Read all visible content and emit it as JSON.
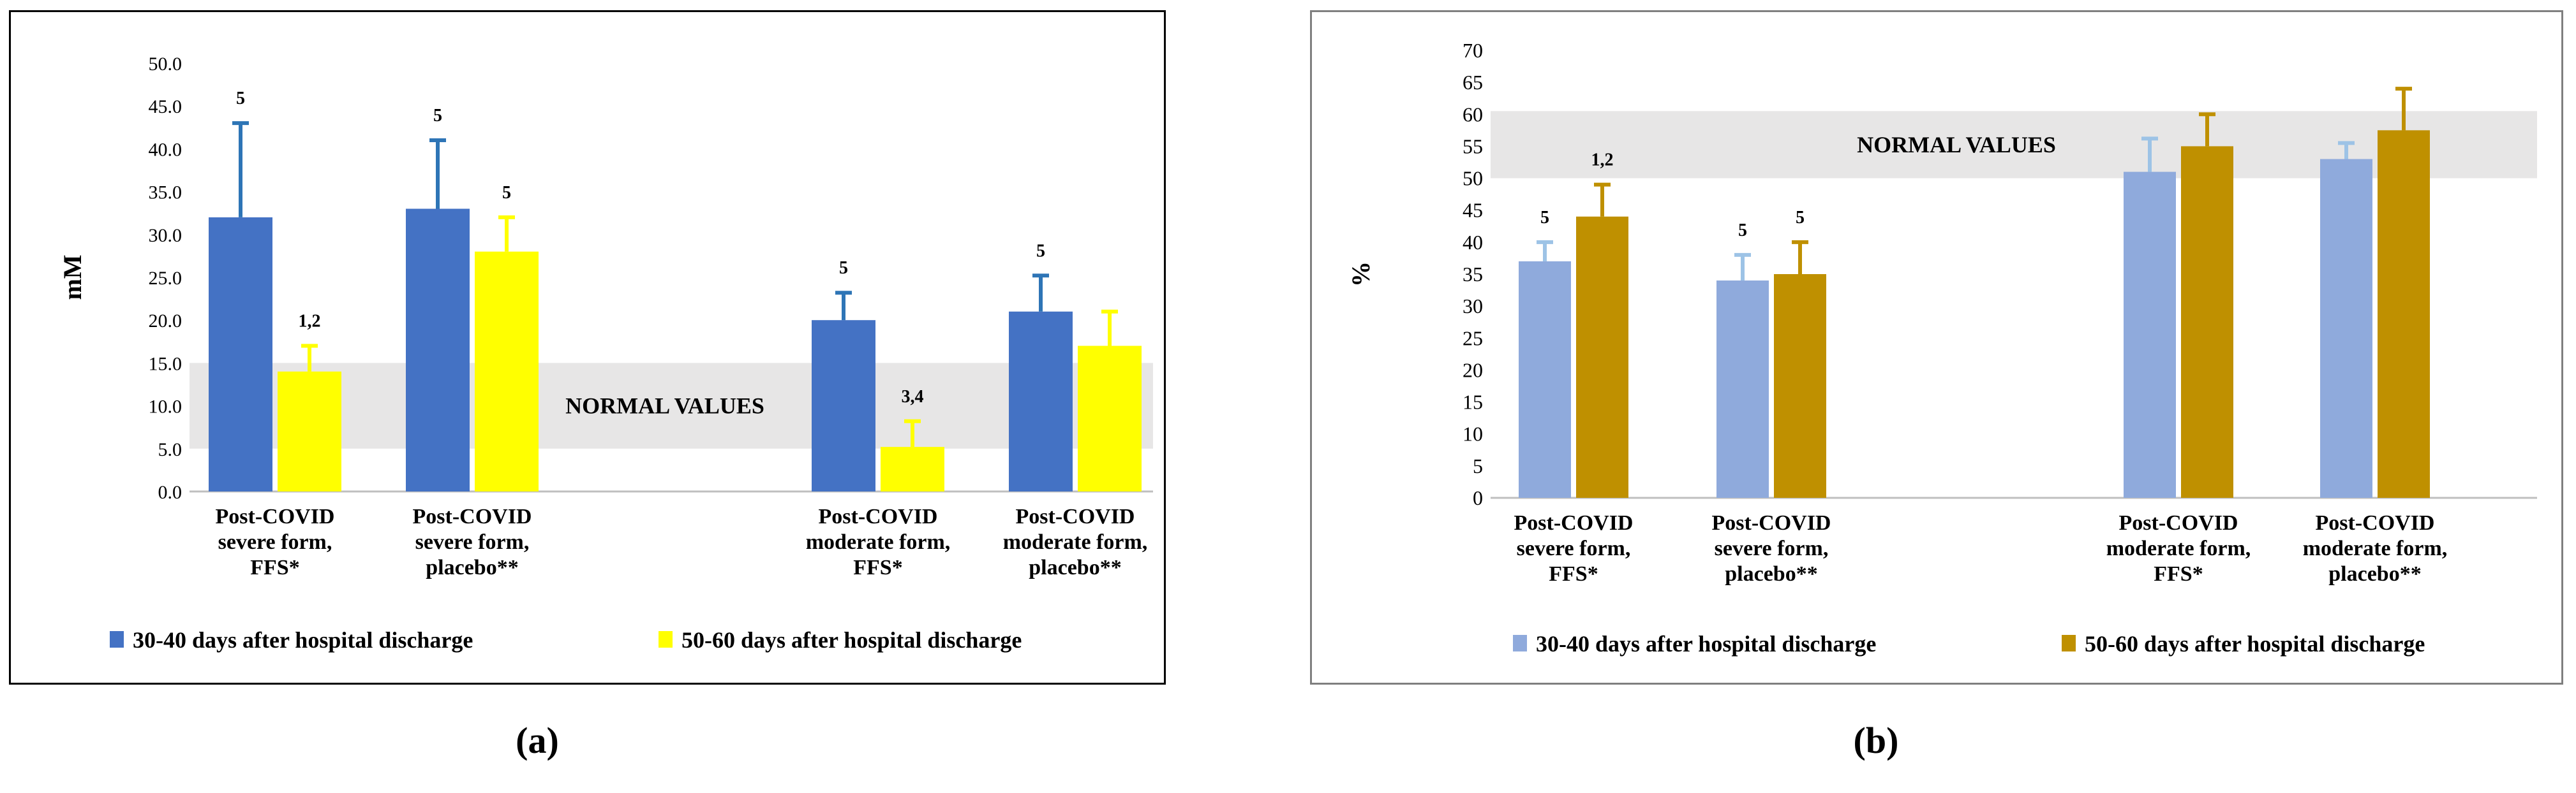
{
  "captions": {
    "a": "(a)",
    "b": "(b)"
  },
  "chart_data": [
    {
      "type": "bar",
      "panel": "a",
      "ylabel": "mM",
      "ylim": [
        0,
        50
      ],
      "yticks": [
        "0.0",
        "5.0",
        "10.0",
        "15.0",
        "20.0",
        "25.0",
        "30.0",
        "35.0",
        "40.0",
        "45.0",
        "50.0"
      ],
      "normal_band": {
        "label": "NORMAL VALUES",
        "range": [
          5,
          15
        ]
      },
      "categories": [
        [
          "Post-COVID",
          "severe form,",
          "FFS*"
        ],
        [
          "Post-COVID",
          "severe form,",
          "placebo**"
        ],
        [
          "Post-COVID",
          "moderate form,",
          "FFS*"
        ],
        [
          "Post-COVID",
          "moderate form,",
          "placebo**"
        ]
      ],
      "series": [
        {
          "name": "30-40 days after hospital discharge",
          "color": "#4472C4",
          "err_color": "#2E75B6",
          "values": [
            32,
            33,
            20,
            21
          ],
          "errors": [
            11,
            8,
            3.2,
            4.2
          ],
          "labels": [
            "5",
            "5",
            "5",
            "5"
          ]
        },
        {
          "name": "50-60 days after hospital discharge",
          "color": "#FFFF00",
          "err_color": "#FFFF00",
          "values": [
            14,
            28,
            5.2,
            17
          ],
          "errors": [
            3,
            4,
            3,
            4
          ],
          "labels": [
            "1,2",
            "5",
            "3,4",
            ""
          ]
        }
      ]
    },
    {
      "type": "bar",
      "panel": "b",
      "ylabel": "%",
      "ylim": [
        0,
        70
      ],
      "yticks": [
        "0",
        "5",
        "10",
        "15",
        "20",
        "25",
        "30",
        "35",
        "40",
        "45",
        "50",
        "55",
        "60",
        "65",
        "70"
      ],
      "normal_band": {
        "label": "NORMAL VALUES",
        "range": [
          50,
          60.5
        ]
      },
      "categories": [
        [
          "Post-COVID",
          "severe form,",
          "FFS*"
        ],
        [
          "Post-COVID",
          "severe form,",
          "placebo**"
        ],
        [
          "Post-COVID",
          "moderate form,",
          "FFS*"
        ],
        [
          "Post-COVID",
          "moderate form,",
          "placebo**"
        ]
      ],
      "series": [
        {
          "name": "30-40 days after hospital discharge",
          "color": "#8FAADC",
          "err_color": "#9DC3E6",
          "values": [
            37,
            34,
            51,
            53
          ],
          "errors": [
            3,
            4,
            5.2,
            2.5
          ],
          "labels": [
            "5",
            "5",
            "",
            ""
          ]
        },
        {
          "name": "50-60 days after hospital discharge",
          "color": "#BF9000",
          "err_color": "#BF9000",
          "values": [
            44,
            35,
            55,
            57.5
          ],
          "errors": [
            5,
            5,
            5,
            6.5
          ],
          "labels": [
            "1,2",
            "5",
            "",
            ""
          ]
        }
      ]
    }
  ]
}
